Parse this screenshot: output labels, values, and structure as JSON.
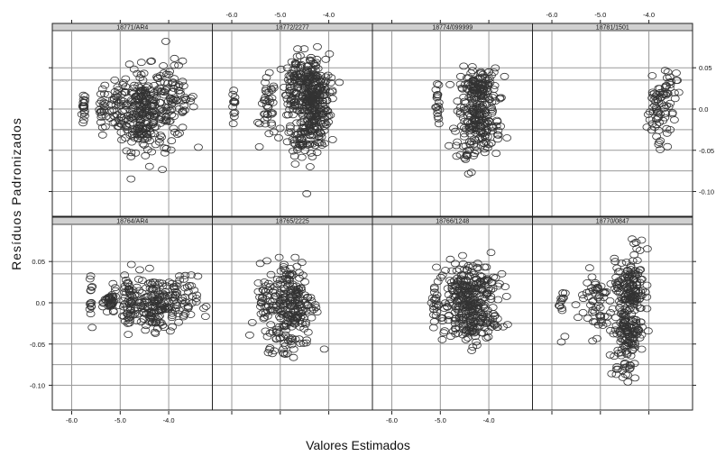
{
  "chart_data": {
    "type": "scatter",
    "xlabel": "Valores Estimados",
    "ylabel": "Resíduos Padronizados",
    "xlim": [
      -6.4,
      -3.1
    ],
    "ylim": [
      -0.13,
      0.095
    ],
    "x_ticks": [
      -6.0,
      -5.0,
      -4.0
    ],
    "x_tick_labels": [
      "-6.0",
      "-5.0",
      "-4.0"
    ],
    "y_ticks": [
      0.05,
      0.0,
      -0.05,
      -0.1
    ],
    "y_tick_labels": [
      "0.05",
      "0.0",
      "-0.05",
      "-0.10"
    ],
    "grid": true,
    "marker": "open-circle",
    "colors": {
      "marker": "#333333",
      "grid": "#999999",
      "strip": "#d0d0d0",
      "frame": "#222222"
    },
    "panels": [
      {
        "label": "18771/AR4",
        "groups": [
          {
            "cx": -5.75,
            "cy": 0.0,
            "sx": 0.02,
            "sy": 0.012,
            "n": 18
          },
          {
            "cx": -5.35,
            "cy": 0.0,
            "sx": 0.04,
            "sy": 0.012,
            "n": 22
          },
          {
            "cx": -5.05,
            "cy": 0.0,
            "sx": 0.1,
            "sy": 0.014,
            "n": 40
          },
          {
            "cx": -4.55,
            "cy": 0.0,
            "sx": 0.22,
            "sy": 0.025,
            "n": 200
          },
          {
            "cx": -3.95,
            "cy": 0.01,
            "sx": 0.25,
            "sy": 0.022,
            "n": 90
          },
          {
            "cx": -4.45,
            "cy": -0.04,
            "sx": 0.35,
            "sy": 0.02,
            "n": 25
          }
        ]
      },
      {
        "label": "18772/2277",
        "groups": [
          {
            "cx": -5.95,
            "cy": 0.0,
            "sx": 0.02,
            "sy": 0.012,
            "n": 12
          },
          {
            "cx": -5.25,
            "cy": 0.0,
            "sx": 0.08,
            "sy": 0.018,
            "n": 40
          },
          {
            "cx": -4.7,
            "cy": 0.03,
            "sx": 0.1,
            "sy": 0.018,
            "n": 60
          },
          {
            "cx": -4.35,
            "cy": 0.01,
            "sx": 0.18,
            "sy": 0.028,
            "n": 320
          },
          {
            "cx": -4.6,
            "cy": -0.04,
            "sx": 0.2,
            "sy": 0.012,
            "n": 40
          }
        ]
      },
      {
        "label": "18774/099999",
        "groups": [
          {
            "cx": -5.05,
            "cy": 0.0,
            "sx": 0.02,
            "sy": 0.016,
            "n": 16
          },
          {
            "cx": -4.2,
            "cy": 0.025,
            "sx": 0.2,
            "sy": 0.012,
            "n": 130
          },
          {
            "cx": -4.2,
            "cy": -0.02,
            "sx": 0.22,
            "sy": 0.014,
            "n": 140
          },
          {
            "cx": -4.4,
            "cy": -0.05,
            "sx": 0.2,
            "sy": 0.012,
            "n": 20
          }
        ]
      },
      {
        "label": "18781/1501",
        "groups": [
          {
            "cx": -3.8,
            "cy": 0.0,
            "sx": 0.12,
            "sy": 0.018,
            "n": 60
          },
          {
            "cx": -3.55,
            "cy": 0.03,
            "sx": 0.1,
            "sy": 0.014,
            "n": 18
          },
          {
            "cx": -3.75,
            "cy": -0.035,
            "sx": 0.08,
            "sy": 0.01,
            "n": 6
          }
        ]
      },
      {
        "label": "18764/AR4",
        "groups": [
          {
            "cx": -5.6,
            "cy": 0.0,
            "sx": 0.02,
            "sy": 0.012,
            "n": 14
          },
          {
            "cx": -5.2,
            "cy": 0.0,
            "sx": 0.06,
            "sy": 0.008,
            "n": 40
          },
          {
            "cx": -4.8,
            "cy": 0.0,
            "sx": 0.1,
            "sy": 0.018,
            "n": 60
          },
          {
            "cx": -4.3,
            "cy": 0.0,
            "sx": 0.2,
            "sy": 0.016,
            "n": 130
          },
          {
            "cx": -3.8,
            "cy": 0.0,
            "sx": 0.2,
            "sy": 0.016,
            "n": 60
          }
        ]
      },
      {
        "label": "18765/2225",
        "groups": [
          {
            "cx": -5.35,
            "cy": 0.0,
            "sx": 0.04,
            "sy": 0.015,
            "n": 20
          },
          {
            "cx": -4.8,
            "cy": 0.0,
            "sx": 0.25,
            "sy": 0.026,
            "n": 220
          },
          {
            "cx": -4.9,
            "cy": -0.045,
            "sx": 0.2,
            "sy": 0.01,
            "n": 25
          }
        ]
      },
      {
        "label": "18766/1248",
        "groups": [
          {
            "cx": -5.1,
            "cy": 0.0,
            "sx": 0.04,
            "sy": 0.014,
            "n": 20
          },
          {
            "cx": -4.4,
            "cy": 0.02,
            "sx": 0.28,
            "sy": 0.015,
            "n": 170
          },
          {
            "cx": -4.4,
            "cy": -0.02,
            "sx": 0.28,
            "sy": 0.015,
            "n": 160
          }
        ]
      },
      {
        "label": "18770/0847",
        "groups": [
          {
            "cx": -5.8,
            "cy": 0.0,
            "sx": 0.03,
            "sy": 0.016,
            "n": 15
          },
          {
            "cx": -5.1,
            "cy": 0.0,
            "sx": 0.18,
            "sy": 0.02,
            "n": 60
          },
          {
            "cx": -4.4,
            "cy": 0.02,
            "sx": 0.15,
            "sy": 0.016,
            "n": 130
          },
          {
            "cx": -4.4,
            "cy": -0.03,
            "sx": 0.15,
            "sy": 0.016,
            "n": 120
          },
          {
            "cx": -4.5,
            "cy": -0.08,
            "sx": 0.15,
            "sy": 0.012,
            "n": 25
          },
          {
            "cx": -4.2,
            "cy": 0.07,
            "sx": 0.1,
            "sy": 0.008,
            "n": 6
          }
        ]
      }
    ]
  }
}
